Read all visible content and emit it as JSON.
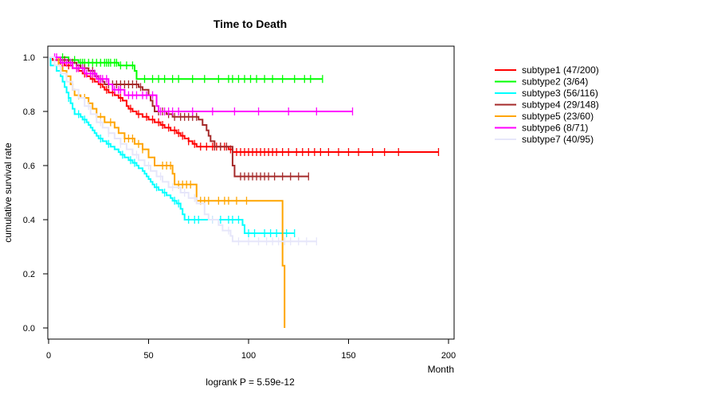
{
  "chart_data": {
    "type": "line",
    "title": "Time to Death",
    "xlabel": "Month",
    "ylabel": "cumulative survival rate",
    "footnote": "logrank P = 5.59e-12",
    "xlim": [
      0,
      200
    ],
    "ylim": [
      0,
      1
    ],
    "x_ticks": [
      0,
      50,
      100,
      150,
      200
    ],
    "y_ticks": [
      0.0,
      0.2,
      0.4,
      0.6,
      0.8,
      1.0
    ],
    "x_tick_labels": [
      "0",
      "50",
      "100",
      "150",
      "200"
    ],
    "y_tick_labels": [
      "0.0",
      "0.2",
      "0.4",
      "0.6",
      "0.8",
      "1.0"
    ],
    "legend_position": "right",
    "series": [
      {
        "name": "subtype1 (47/200)",
        "color": "#ff0000",
        "steps": [
          [
            0,
            1.0
          ],
          [
            2,
            0.99
          ],
          [
            5,
            0.98
          ],
          [
            8,
            0.97
          ],
          [
            12,
            0.96
          ],
          [
            15,
            0.95
          ],
          [
            17,
            0.94
          ],
          [
            19,
            0.93
          ],
          [
            21,
            0.92
          ],
          [
            23,
            0.91
          ],
          [
            25,
            0.9
          ],
          [
            27,
            0.89
          ],
          [
            28,
            0.88
          ],
          [
            30,
            0.87
          ],
          [
            33,
            0.86
          ],
          [
            35,
            0.85
          ],
          [
            37,
            0.84
          ],
          [
            39,
            0.82
          ],
          [
            40,
            0.81
          ],
          [
            42,
            0.8
          ],
          [
            44,
            0.79
          ],
          [
            47,
            0.78
          ],
          [
            50,
            0.77
          ],
          [
            53,
            0.76
          ],
          [
            56,
            0.75
          ],
          [
            58,
            0.74
          ],
          [
            61,
            0.73
          ],
          [
            64,
            0.72
          ],
          [
            66,
            0.71
          ],
          [
            68,
            0.7
          ],
          [
            70,
            0.69
          ],
          [
            72,
            0.68
          ],
          [
            74,
            0.67
          ],
          [
            90,
            0.66
          ],
          [
            92,
            0.65
          ]
        ],
        "end": 195,
        "censor": [
          6,
          10,
          14,
          18,
          22,
          26,
          29,
          32,
          36,
          41,
          45,
          49,
          52,
          55,
          57,
          60,
          63,
          65,
          67,
          70,
          73,
          76,
          79,
          82,
          84,
          86,
          88,
          91,
          94,
          96,
          98,
          100,
          102,
          104,
          106,
          108,
          110,
          112,
          114,
          117,
          120,
          124,
          127,
          130,
          133,
          136,
          140,
          145,
          150,
          155,
          162,
          168,
          175,
          195
        ]
      },
      {
        "name": "subtype2 (3/64)",
        "color": "#00ff00",
        "steps": [
          [
            0,
            1.0
          ],
          [
            10,
            0.99
          ],
          [
            15,
            0.98
          ],
          [
            35,
            0.97
          ],
          [
            43,
            0.95
          ],
          [
            44,
            0.92
          ]
        ],
        "end": 137,
        "censor": [
          7,
          13,
          16,
          17,
          18,
          20,
          22,
          24,
          26,
          28,
          29,
          30,
          31,
          33,
          34,
          36,
          39,
          42,
          48,
          52,
          55,
          58,
          62,
          65,
          72,
          78,
          85,
          90,
          92,
          95,
          98,
          101,
          104,
          108,
          112,
          117,
          123,
          128,
          131,
          137
        ]
      },
      {
        "name": "subtype3 (56/116)",
        "color": "#00ffff",
        "steps": [
          [
            0,
            1.0
          ],
          [
            1,
            0.97
          ],
          [
            4,
            0.95
          ],
          [
            6,
            0.93
          ],
          [
            7,
            0.91
          ],
          [
            8,
            0.89
          ],
          [
            9,
            0.87
          ],
          [
            10,
            0.85
          ],
          [
            11,
            0.83
          ],
          [
            12,
            0.81
          ],
          [
            13,
            0.79
          ],
          [
            16,
            0.78
          ],
          [
            17,
            0.77
          ],
          [
            19,
            0.76
          ],
          [
            20,
            0.75
          ],
          [
            21,
            0.74
          ],
          [
            22,
            0.73
          ],
          [
            23,
            0.72
          ],
          [
            24,
            0.71
          ],
          [
            25,
            0.7
          ],
          [
            27,
            0.69
          ],
          [
            29,
            0.68
          ],
          [
            31,
            0.67
          ],
          [
            33,
            0.66
          ],
          [
            35,
            0.65
          ],
          [
            36,
            0.64
          ],
          [
            38,
            0.63
          ],
          [
            40,
            0.62
          ],
          [
            42,
            0.61
          ],
          [
            44,
            0.6
          ],
          [
            45,
            0.59
          ],
          [
            47,
            0.58
          ],
          [
            48,
            0.57
          ],
          [
            49,
            0.56
          ],
          [
            50,
            0.55
          ],
          [
            51,
            0.54
          ],
          [
            52,
            0.53
          ],
          [
            53,
            0.52
          ],
          [
            55,
            0.51
          ],
          [
            57,
            0.5
          ],
          [
            59,
            0.49
          ],
          [
            61,
            0.48
          ],
          [
            62,
            0.47
          ],
          [
            64,
            0.46
          ],
          [
            66,
            0.44
          ],
          [
            67,
            0.42
          ],
          [
            68,
            0.4
          ],
          [
            97,
            0.38
          ],
          [
            98,
            0.35
          ]
        ],
        "end": 123,
        "censor": [
          10,
          15,
          18,
          26,
          30,
          37,
          41,
          43,
          54,
          58,
          63,
          65,
          70,
          73,
          75,
          82,
          86,
          90,
          92,
          95,
          100,
          103,
          108,
          111,
          114,
          117,
          119,
          123
        ]
      },
      {
        "name": "subtype4 (29/148)",
        "color": "#a52a2a",
        "steps": [
          [
            0,
            1.0
          ],
          [
            5,
            0.99
          ],
          [
            10,
            0.98
          ],
          [
            14,
            0.97
          ],
          [
            16,
            0.96
          ],
          [
            20,
            0.95
          ],
          [
            23,
            0.93
          ],
          [
            25,
            0.92
          ],
          [
            27,
            0.91
          ],
          [
            28,
            0.9
          ],
          [
            45,
            0.89
          ],
          [
            47,
            0.88
          ],
          [
            50,
            0.86
          ],
          [
            51,
            0.84
          ],
          [
            52,
            0.82
          ],
          [
            53,
            0.8
          ],
          [
            59,
            0.79
          ],
          [
            62,
            0.78
          ],
          [
            75,
            0.77
          ],
          [
            77,
            0.75
          ],
          [
            79,
            0.73
          ],
          [
            80,
            0.71
          ],
          [
            81,
            0.69
          ],
          [
            83,
            0.67
          ],
          [
            92,
            0.6
          ],
          [
            93,
            0.56
          ]
        ],
        "end": 130,
        "censor": [
          8,
          12,
          18,
          22,
          26,
          30,
          32,
          34,
          36,
          38,
          40,
          42,
          44,
          46,
          55,
          57,
          60,
          63,
          66,
          68,
          70,
          72,
          74,
          83,
          86,
          89,
          96,
          98,
          100,
          102,
          104,
          106,
          108,
          110,
          113,
          117,
          121,
          125,
          130
        ]
      },
      {
        "name": "subtype5 (23/60)",
        "color": "#ffa500",
        "steps": [
          [
            0,
            1.0
          ],
          [
            5,
            0.97
          ],
          [
            7,
            0.95
          ],
          [
            9,
            0.93
          ],
          [
            11,
            0.9
          ],
          [
            12,
            0.88
          ],
          [
            13,
            0.86
          ],
          [
            16,
            0.85
          ],
          [
            20,
            0.83
          ],
          [
            22,
            0.81
          ],
          [
            24,
            0.78
          ],
          [
            28,
            0.76
          ],
          [
            33,
            0.74
          ],
          [
            35,
            0.72
          ],
          [
            38,
            0.7
          ],
          [
            43,
            0.68
          ],
          [
            47,
            0.66
          ],
          [
            50,
            0.63
          ],
          [
            53,
            0.6
          ],
          [
            62,
            0.57
          ],
          [
            63,
            0.53
          ],
          [
            74,
            0.47
          ],
          [
            117,
            0.23
          ],
          [
            118,
            0.0
          ]
        ],
        "end": 118,
        "censor": [
          15,
          18,
          26,
          31,
          38,
          40,
          42,
          45,
          47,
          57,
          59,
          61,
          65,
          67,
          69,
          71,
          76,
          78,
          80,
          85,
          88,
          90,
          94,
          99
        ]
      },
      {
        "name": "subtype6 (8/71)",
        "color": "#ff00ff",
        "steps": [
          [
            0,
            1.0
          ],
          [
            6,
            0.98
          ],
          [
            12,
            0.96
          ],
          [
            18,
            0.94
          ],
          [
            24,
            0.92
          ],
          [
            30,
            0.9
          ],
          [
            32,
            0.88
          ],
          [
            38,
            0.86
          ],
          [
            54,
            0.82
          ],
          [
            55,
            0.8
          ]
        ],
        "end": 152,
        "censor": [
          3,
          4,
          7,
          9,
          11,
          14,
          15,
          17,
          19,
          21,
          22,
          23,
          25,
          26,
          27,
          29,
          33,
          35,
          36,
          40,
          42,
          44,
          47,
          49,
          52,
          56,
          58,
          60,
          62,
          65,
          72,
          82,
          93,
          105,
          120,
          134,
          152
        ]
      },
      {
        "name": "subtype7 (40/95)",
        "color": "#e6e6fa",
        "steps": [
          [
            0,
            1.0
          ],
          [
            3,
            0.97
          ],
          [
            6,
            0.94
          ],
          [
            9,
            0.91
          ],
          [
            12,
            0.88
          ],
          [
            15,
            0.85
          ],
          [
            18,
            0.82
          ],
          [
            21,
            0.79
          ],
          [
            24,
            0.76
          ],
          [
            27,
            0.74
          ],
          [
            30,
            0.72
          ],
          [
            33,
            0.7
          ],
          [
            36,
            0.68
          ],
          [
            39,
            0.66
          ],
          [
            42,
            0.64
          ],
          [
            45,
            0.62
          ],
          [
            48,
            0.6
          ],
          [
            51,
            0.58
          ],
          [
            54,
            0.56
          ],
          [
            57,
            0.54
          ],
          [
            60,
            0.52
          ],
          [
            66,
            0.5
          ],
          [
            70,
            0.48
          ],
          [
            74,
            0.46
          ],
          [
            78,
            0.42
          ],
          [
            80,
            0.4
          ],
          [
            85,
            0.38
          ],
          [
            87,
            0.36
          ],
          [
            91,
            0.34
          ],
          [
            92,
            0.32
          ]
        ],
        "end": 134,
        "censor": [
          20,
          26,
          30,
          36,
          44,
          50,
          56,
          62,
          68,
          73,
          82,
          90,
          95,
          100,
          105,
          109,
          112,
          115,
          118,
          121,
          125,
          129,
          134
        ]
      }
    ]
  }
}
